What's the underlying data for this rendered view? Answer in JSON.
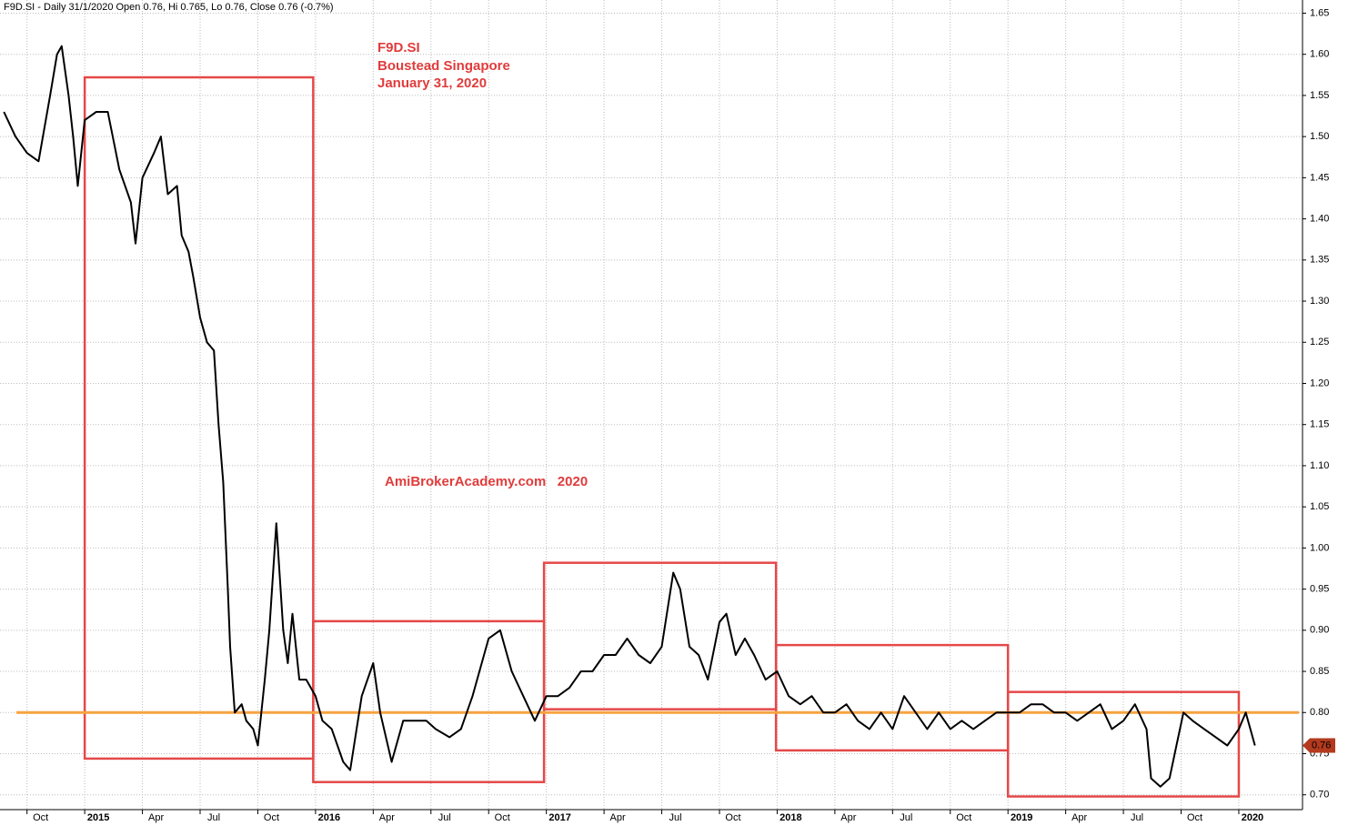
{
  "chart_data": {
    "type": "line",
    "title": "F9D.SI - Daily 31/1/2020 Open 0.76, Hi 0.765, Lo 0.76, Close 0.76 (-0.7%)",
    "annotations": [
      "F9D.SI",
      "Boustead Singapore",
      "January 31, 2020"
    ],
    "watermark": "AmiBrokerAcademy.com   2020",
    "xlim": [
      2014.633,
      2020.276
    ],
    "ylim": [
      0.682,
      1.666
    ],
    "xticks": [
      {
        "value": 2014.75,
        "label": "Oct"
      },
      2015,
      {
        "value": 2015.25,
        "label": "Apr"
      },
      {
        "value": 2015.5,
        "label": "Jul"
      },
      {
        "value": 2015.75,
        "label": "Oct"
      },
      2016,
      {
        "value": 2016.25,
        "label": "Apr"
      },
      {
        "value": 2016.5,
        "label": "Jul"
      },
      {
        "value": 2016.75,
        "label": "Oct"
      },
      2017,
      {
        "value": 2017.25,
        "label": "Apr"
      },
      {
        "value": 2017.5,
        "label": "Jul"
      },
      {
        "value": 2017.75,
        "label": "Oct"
      },
      2018,
      {
        "value": 2018.25,
        "label": "Apr"
      },
      {
        "value": 2018.5,
        "label": "Jul"
      },
      {
        "value": 2018.75,
        "label": "Oct"
      },
      2019,
      {
        "value": 2019.25,
        "label": "Apr"
      },
      {
        "value": 2019.5,
        "label": "Jul"
      },
      {
        "value": 2019.75,
        "label": "Oct"
      },
      2020
    ],
    "yticks": [
      {
        "value": 0.7,
        "label": "0.70"
      },
      0.75,
      {
        "value": 0.8,
        "label": "0.80"
      },
      0.85,
      {
        "value": 0.9,
        "label": "0.90"
      },
      0.95,
      {
        "value": 1.0,
        "label": "1.00"
      },
      1.05,
      {
        "value": 1.1,
        "label": "1.10"
      },
      1.15,
      {
        "value": 1.2,
        "label": "1.20"
      },
      1.25,
      {
        "value": 1.3,
        "label": "1.30"
      },
      1.35,
      {
        "value": 1.4,
        "label": "1.40"
      },
      1.45,
      {
        "value": 1.5,
        "label": "1.50"
      },
      1.55,
      {
        "value": 1.6,
        "label": "1.60"
      },
      1.65
    ],
    "grid": true,
    "x": [
      2014.65,
      2014.7,
      2014.75,
      2014.8,
      2014.85,
      2014.88,
      2014.9,
      2014.93,
      2014.95,
      2014.97,
      2015.0,
      2015.05,
      2015.1,
      2015.15,
      2015.2,
      2015.22,
      2015.25,
      2015.3,
      2015.33,
      2015.36,
      2015.4,
      2015.42,
      2015.45,
      2015.47,
      2015.5,
      2015.53,
      2015.56,
      2015.58,
      2015.6,
      2015.62,
      2015.63,
      2015.65,
      2015.68,
      2015.7,
      2015.73,
      2015.75,
      2015.78,
      2015.8,
      2015.83,
      2015.86,
      2015.88,
      2015.9,
      2015.93,
      2015.96,
      2016.0,
      2016.03,
      2016.07,
      2016.12,
      2016.15,
      2016.2,
      2016.25,
      2016.28,
      2016.33,
      2016.38,
      2016.43,
      2016.48,
      2016.52,
      2016.58,
      2016.63,
      2016.68,
      2016.75,
      2016.8,
      2016.85,
      2016.9,
      2016.95,
      2017.0,
      2017.05,
      2017.1,
      2017.15,
      2017.2,
      2017.25,
      2017.3,
      2017.35,
      2017.4,
      2017.45,
      2017.5,
      2017.55,
      2017.58,
      2017.62,
      2017.66,
      2017.7,
      2017.75,
      2017.78,
      2017.82,
      2017.86,
      2017.9,
      2017.95,
      2018.0,
      2018.05,
      2018.1,
      2018.15,
      2018.2,
      2018.25,
      2018.3,
      2018.35,
      2018.4,
      2018.45,
      2018.5,
      2018.55,
      2018.6,
      2018.65,
      2018.7,
      2018.75,
      2018.8,
      2018.85,
      2018.9,
      2018.95,
      2019.0,
      2019.05,
      2019.1,
      2019.15,
      2019.2,
      2019.25,
      2019.3,
      2019.35,
      2019.4,
      2019.45,
      2019.5,
      2019.55,
      2019.6,
      2019.62,
      2019.66,
      2019.7,
      2019.73,
      2019.76,
      2019.8,
      2019.85,
      2019.9,
      2019.95,
      2020.0,
      2020.03,
      2020.07
    ],
    "series": [
      {
        "color": "#000000",
        "values": [
          1.53,
          1.5,
          1.48,
          1.47,
          1.55,
          1.6,
          1.61,
          1.55,
          1.5,
          1.44,
          1.52,
          1.53,
          1.53,
          1.46,
          1.42,
          1.37,
          1.45,
          1.48,
          1.5,
          1.43,
          1.44,
          1.38,
          1.36,
          1.33,
          1.28,
          1.25,
          1.24,
          1.15,
          1.08,
          0.95,
          0.88,
          0.8,
          0.81,
          0.79,
          0.78,
          0.76,
          0.84,
          0.9,
          1.03,
          0.9,
          0.86,
          0.92,
          0.84,
          0.84,
          0.82,
          0.79,
          0.78,
          0.74,
          0.73,
          0.82,
          0.86,
          0.8,
          0.74,
          0.79,
          0.79,
          0.79,
          0.78,
          0.77,
          0.78,
          0.82,
          0.89,
          0.9,
          0.85,
          0.82,
          0.79,
          0.82,
          0.82,
          0.83,
          0.85,
          0.85,
          0.87,
          0.87,
          0.89,
          0.87,
          0.86,
          0.88,
          0.97,
          0.95,
          0.88,
          0.87,
          0.84,
          0.91,
          0.92,
          0.87,
          0.89,
          0.87,
          0.84,
          0.85,
          0.82,
          0.81,
          0.82,
          0.8,
          0.8,
          0.81,
          0.79,
          0.78,
          0.8,
          0.78,
          0.82,
          0.8,
          0.78,
          0.8,
          0.78,
          0.79,
          0.78,
          0.79,
          0.8,
          0.8,
          0.8,
          0.81,
          0.81,
          0.8,
          0.8,
          0.79,
          0.8,
          0.81,
          0.78,
          0.79,
          0.81,
          0.78,
          0.72,
          0.71,
          0.72,
          0.76,
          0.8,
          0.79,
          0.78,
          0.77,
          0.76,
          0.78,
          0.8,
          0.76
        ]
      }
    ],
    "hline": 0.8,
    "hline_color": "#f5a340",
    "last_value": 0.76,
    "box_color": "#e54848",
    "boxes": [
      {
        "xlim": [
          2015.0,
          2015.99
        ],
        "ylim": [
          0.744,
          1.572
        ]
      },
      {
        "xlim": [
          2015.99,
          2016.99
        ],
        "ylim": [
          0.7155,
          0.911
        ]
      },
      {
        "xlim": [
          2016.99,
          2017.995
        ],
        "ylim": [
          0.804,
          0.982
        ]
      },
      {
        "xlim": [
          2017.995,
          2019.0
        ],
        "ylim": [
          0.754,
          0.882
        ]
      },
      {
        "xlim": [
          2019.0,
          2020.0
        ],
        "ylim": [
          0.698,
          0.825
        ]
      }
    ]
  }
}
